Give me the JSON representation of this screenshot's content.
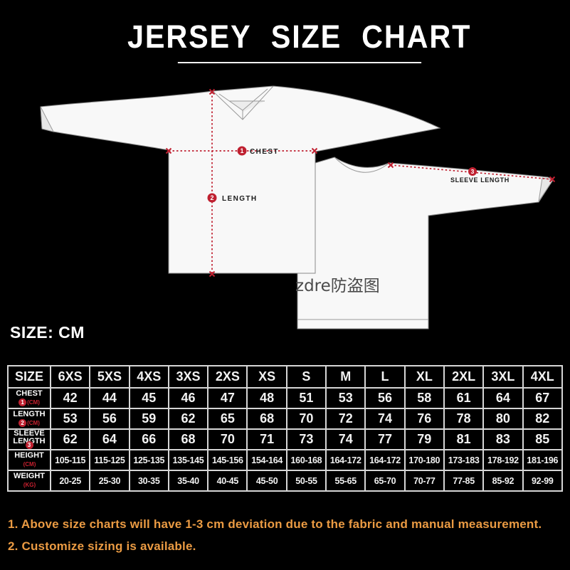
{
  "title": "JERSEY SIZE CHART",
  "unit_label": "SIZE: CM",
  "diagram": {
    "chest_label": "CHEST",
    "length_label": "LENGTH",
    "sleeve_label": "SLEEVE LENGTH",
    "chest_badge": "1",
    "length_badge": "2",
    "sleeve_badge": "3",
    "watermark": "zdre防盗图"
  },
  "chart_data": {
    "type": "table",
    "title": "JERSEY SIZE CHART",
    "unit": "CM",
    "header": [
      "SIZE",
      "6XS",
      "5XS",
      "4XS",
      "3XS",
      "2XS",
      "XS",
      "S",
      "M",
      "L",
      "XL",
      "2XL",
      "3XL",
      "4XL"
    ],
    "rows": [
      {
        "label": "CHEST",
        "badge": "1",
        "sub": "(CM)",
        "values": [
          "42",
          "44",
          "45",
          "46",
          "47",
          "48",
          "51",
          "53",
          "56",
          "58",
          "61",
          "64",
          "67"
        ]
      },
      {
        "label": "LENGTH",
        "badge": "2",
        "sub": "(CM)",
        "values": [
          "53",
          "56",
          "59",
          "62",
          "65",
          "68",
          "70",
          "72",
          "74",
          "76",
          "78",
          "80",
          "82"
        ]
      },
      {
        "label": "SLEEVE LENGTH",
        "badge": "3",
        "sub": "",
        "values": [
          "62",
          "64",
          "66",
          "68",
          "70",
          "71",
          "73",
          "74",
          "77",
          "79",
          "81",
          "83",
          "85"
        ]
      },
      {
        "label": "HEIGHT",
        "badge": "",
        "sub": "(CM)",
        "values": [
          "105-115",
          "115-125",
          "125-135",
          "135-145",
          "145-156",
          "154-164",
          "160-168",
          "164-172",
          "164-172",
          "170-180",
          "173-183",
          "178-192",
          "181-196"
        ]
      },
      {
        "label": "WEIGHT",
        "badge": "",
        "sub": "(KG)",
        "values": [
          "20-25",
          "25-30",
          "30-35",
          "35-40",
          "40-45",
          "45-50",
          "50-55",
          "55-65",
          "65-70",
          "70-77",
          "77-85",
          "85-92",
          "92-99"
        ]
      }
    ]
  },
  "notes": [
    "1. Above size charts will have 1-3 cm deviation due to the fabric and manual measurement.",
    "2. Customize sizing is available."
  ],
  "colors": {
    "background": "#000000",
    "accent_red": "#bf2030",
    "note_orange": "#eb9b43",
    "jersey_white": "#f8f8f8"
  }
}
